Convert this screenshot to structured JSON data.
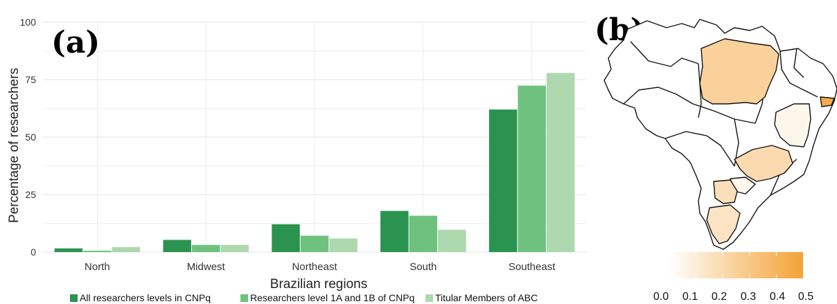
{
  "panels": {
    "a": "(a)",
    "b": "(b)"
  },
  "chart_data": [
    {
      "type": "bar",
      "xlabel": "Brazilian regions",
      "ylabel": "Percentage of researchers",
      "ylim": [
        0,
        100
      ],
      "yticks": [
        "0",
        "25",
        "50",
        "75",
        "100"
      ],
      "grid": true,
      "legend_position": "bottom",
      "categories": [
        "North",
        "Midwest",
        "Northeast",
        "South",
        "Southeast"
      ],
      "series": [
        {
          "name": "All researchers levels in CNPq",
          "color": "#2b9350",
          "values": [
            1.6,
            5.3,
            12.1,
            17.9,
            62.0
          ]
        },
        {
          "name": "Researchers level 1A and 1B of CNPq",
          "color": "#6ec27d",
          "values": [
            0.6,
            3.1,
            7.1,
            15.8,
            72.4
          ]
        },
        {
          "name": "Titular Members of ABC",
          "color": "#aed8ae",
          "values": [
            2.2,
            3.1,
            5.9,
            9.7,
            77.9
          ]
        }
      ]
    },
    {
      "type": "heatmap",
      "subtype": "choropleth-map",
      "colorbar": {
        "ticks": [
          "0.0",
          "0.1",
          "0.2",
          "0.3",
          "0.4",
          "0.5"
        ],
        "range": [
          0,
          0.5
        ],
        "color_low": "#ffffff",
        "color_high": "#f4a236"
      },
      "regions": [
        {
          "name": "north-large-state",
          "value": 0.25
        },
        {
          "name": "northeast-coastal-state",
          "value": 0.45
        },
        {
          "name": "northeast-interior-state",
          "value": 0.05
        },
        {
          "name": "southeast-inland-state",
          "value": 0.2
        },
        {
          "name": "southeast-coastal-state",
          "value": 0.04
        },
        {
          "name": "south-upper-state",
          "value": 0.17
        },
        {
          "name": "south-lower-state",
          "value": 0.15
        }
      ]
    }
  ]
}
